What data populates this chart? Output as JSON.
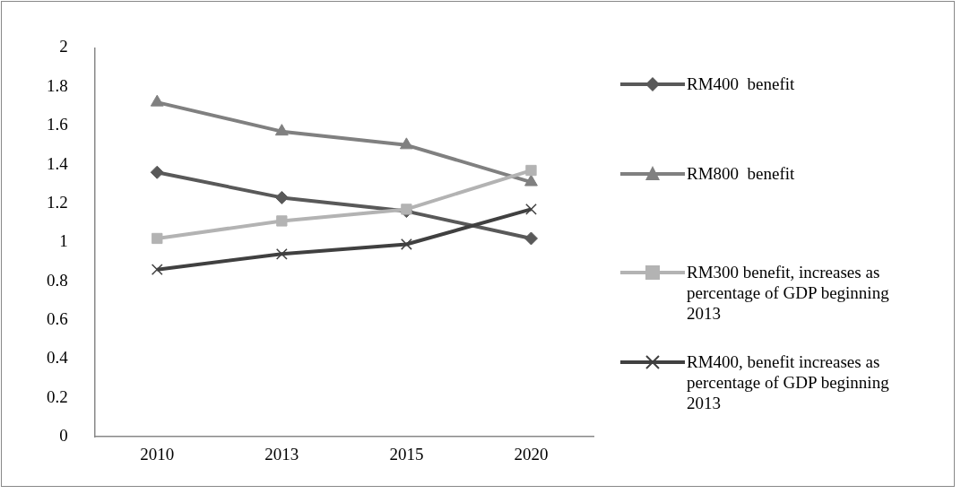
{
  "chart_data": {
    "type": "line",
    "categories": [
      "2010",
      "2013",
      "2015",
      "2020"
    ],
    "ylim": [
      0,
      2
    ],
    "yticks": [
      0,
      0.2,
      0.4,
      0.6,
      0.8,
      1,
      1.2,
      1.4,
      1.6,
      1.8,
      2
    ],
    "grid": false,
    "legend": "right",
    "series": [
      {
        "name": "RM400  benefit",
        "color": "#595959",
        "marker": "diamond",
        "values": [
          1.36,
          1.23,
          1.16,
          1.02
        ]
      },
      {
        "name": "RM800  benefit",
        "color": "#808080",
        "marker": "triangle",
        "values": [
          1.72,
          1.57,
          1.5,
          1.31
        ]
      },
      {
        "name": "RM300 benefit, increases as percentage of GDP beginning 2013",
        "color": "#b3b3b3",
        "marker": "square",
        "values": [
          1.02,
          1.11,
          1.17,
          1.37
        ]
      },
      {
        "name": "RM400, benefit increases as percentage of GDP beginning 2013",
        "color": "#404040",
        "marker": "cross",
        "values": [
          0.86,
          0.94,
          0.99,
          1.17
        ]
      }
    ]
  }
}
